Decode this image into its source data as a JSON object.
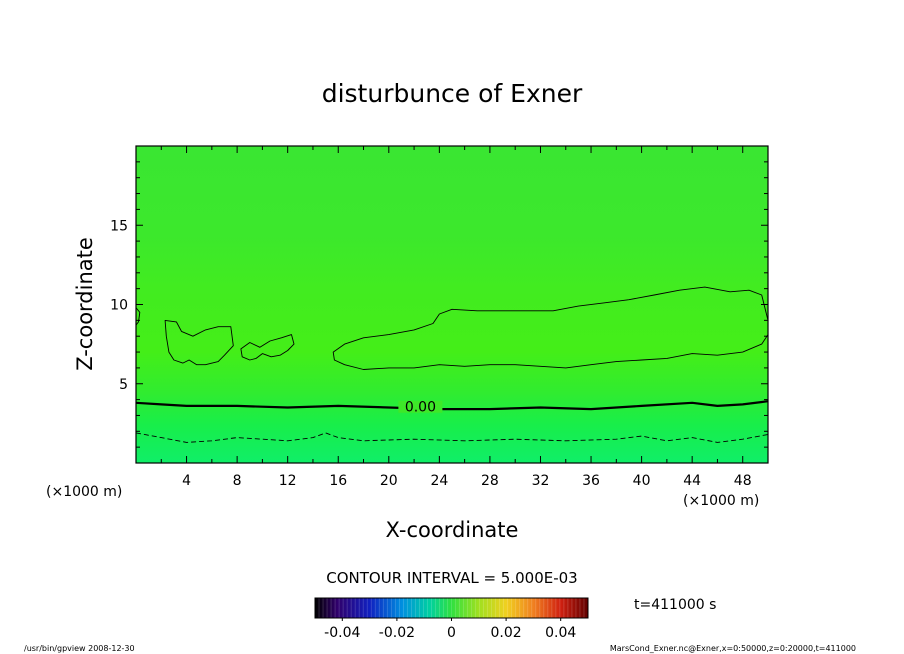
{
  "chart_data": {
    "type": "heatmap",
    "title": "disturbunce of Exner",
    "xlabel": "X-coordinate",
    "ylabel": "Z-coordinate",
    "x_unit": "(×1000 m)",
    "y_unit": "(×1000 m)",
    "xlim": [
      0,
      50
    ],
    "ylim": [
      0,
      20
    ],
    "x_ticks": [
      4,
      8,
      12,
      16,
      20,
      24,
      28,
      32,
      36,
      40,
      44,
      48
    ],
    "y_ticks": [
      5,
      10,
      15
    ],
    "contour_interval_label": "CONTOUR INTERVAL = 5.000E-03",
    "contour_label": "0.00",
    "colorbar": {
      "min": -0.05,
      "max": 0.05,
      "ticks": [
        "-0.04",
        "-0.02",
        "0",
        "0.02",
        "0.04"
      ],
      "tick_values": [
        -0.04,
        -0.02,
        0,
        0.02,
        0.04
      ]
    },
    "time_label": "t=411000 s",
    "contours": [
      {
        "level": 0.0,
        "style": "thick",
        "points": [
          [
            0,
            3.8
          ],
          [
            2,
            3.7
          ],
          [
            4,
            3.6
          ],
          [
            8,
            3.6
          ],
          [
            12,
            3.5
          ],
          [
            16,
            3.6
          ],
          [
            20,
            3.5
          ],
          [
            24,
            3.4
          ],
          [
            28,
            3.4
          ],
          [
            32,
            3.5
          ],
          [
            36,
            3.4
          ],
          [
            40,
            3.6
          ],
          [
            44,
            3.8
          ],
          [
            46,
            3.6
          ],
          [
            48,
            3.7
          ],
          [
            50,
            3.9
          ]
        ]
      },
      {
        "level": -0.005,
        "style": "dashed",
        "points": [
          [
            0,
            1.9
          ],
          [
            2,
            1.6
          ],
          [
            4,
            1.3
          ],
          [
            6,
            1.4
          ],
          [
            8,
            1.6
          ],
          [
            10,
            1.5
          ],
          [
            12,
            1.4
          ],
          [
            14,
            1.6
          ],
          [
            15,
            1.9
          ],
          [
            16,
            1.6
          ],
          [
            18,
            1.4
          ],
          [
            22,
            1.5
          ],
          [
            26,
            1.4
          ],
          [
            30,
            1.5
          ],
          [
            34,
            1.4
          ],
          [
            38,
            1.5
          ],
          [
            40,
            1.7
          ],
          [
            42,
            1.4
          ],
          [
            44,
            1.6
          ],
          [
            46,
            1.3
          ],
          [
            48,
            1.5
          ],
          [
            50,
            1.8
          ]
        ]
      },
      {
        "level": 0.005,
        "style": "thin",
        "closed": true,
        "points": [
          [
            2.3,
            9.0
          ],
          [
            3.2,
            8.9
          ],
          [
            3.6,
            8.3
          ],
          [
            4.5,
            8.0
          ],
          [
            5.5,
            8.4
          ],
          [
            6.5,
            8.6
          ],
          [
            7.5,
            8.6
          ],
          [
            7.7,
            7.4
          ],
          [
            7.0,
            6.8
          ],
          [
            6.5,
            6.4
          ],
          [
            5.5,
            6.2
          ],
          [
            4.8,
            6.2
          ],
          [
            4.2,
            6.5
          ],
          [
            3.7,
            6.3
          ],
          [
            3.0,
            6.5
          ],
          [
            2.6,
            7.0
          ],
          [
            2.4,
            8.0
          ]
        ]
      },
      {
        "level": 0.005,
        "style": "thin",
        "closed": true,
        "points": [
          [
            8.3,
            7.2
          ],
          [
            9.0,
            7.6
          ],
          [
            9.8,
            7.3
          ],
          [
            10.6,
            7.7
          ],
          [
            11.5,
            7.9
          ],
          [
            12.3,
            8.1
          ],
          [
            12.5,
            7.5
          ],
          [
            12.0,
            7.1
          ],
          [
            11.4,
            6.8
          ],
          [
            10.7,
            6.7
          ],
          [
            10.0,
            6.9
          ],
          [
            9.5,
            6.6
          ],
          [
            9.0,
            6.5
          ],
          [
            8.4,
            6.7
          ]
        ]
      },
      {
        "level": 0.005,
        "style": "thin",
        "closed": true,
        "points": [
          [
            15.6,
            7.0
          ],
          [
            16.5,
            7.5
          ],
          [
            18,
            7.9
          ],
          [
            20,
            8.1
          ],
          [
            22,
            8.4
          ],
          [
            23.5,
            8.8
          ],
          [
            24,
            9.4
          ],
          [
            25,
            9.7
          ],
          [
            27,
            9.6
          ],
          [
            30,
            9.6
          ],
          [
            33,
            9.6
          ],
          [
            35,
            9.9
          ],
          [
            37,
            10.1
          ],
          [
            39,
            10.3
          ],
          [
            41,
            10.6
          ],
          [
            43,
            10.9
          ],
          [
            45,
            11.1
          ],
          [
            47,
            10.8
          ],
          [
            48.5,
            10.9
          ],
          [
            49.5,
            10.6
          ],
          [
            50,
            9.0
          ],
          [
            50,
            8.1
          ],
          [
            49.5,
            7.5
          ],
          [
            48,
            7.0
          ],
          [
            46,
            6.8
          ],
          [
            44,
            6.9
          ],
          [
            42,
            6.6
          ],
          [
            40,
            6.5
          ],
          [
            38,
            6.4
          ],
          [
            36,
            6.2
          ],
          [
            34,
            6.0
          ],
          [
            32,
            6.1
          ],
          [
            30,
            6.2
          ],
          [
            28,
            6.2
          ],
          [
            26,
            6.1
          ],
          [
            24,
            6.2
          ],
          [
            22,
            6.0
          ],
          [
            20,
            6.0
          ],
          [
            18,
            5.9
          ],
          [
            16.5,
            6.2
          ],
          [
            15.7,
            6.5
          ]
        ]
      },
      {
        "level": 0.005,
        "style": "thin",
        "points": [
          [
            0,
            9.8
          ],
          [
            0.3,
            9.5
          ],
          [
            0.2,
            8.9
          ],
          [
            0,
            8.7
          ]
        ]
      }
    ]
  },
  "footer": {
    "left": "/usr/bin/gpview   2008-12-30",
    "right": "MarsCond_Exner.nc@Exner,x=0:50000,z=0:20000,t=411000"
  },
  "colors": {
    "field_bottom": "#10ee60",
    "field_mid": "#40ee20",
    "field_top": "#38e830",
    "contour": "#000000"
  }
}
